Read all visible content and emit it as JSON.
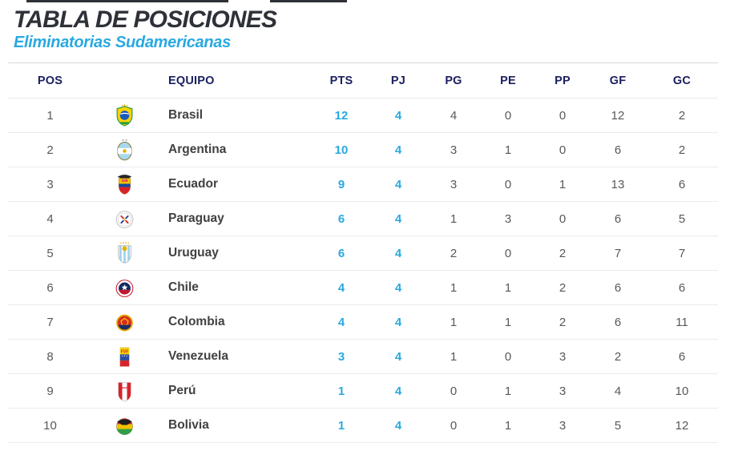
{
  "page": {
    "title": "TABLA DE POSICIONES",
    "subtitle": "Eliminatorias Sudamericanas"
  },
  "colors": {
    "accent_blue": "#29a9e0",
    "header_navy": "#1c2060",
    "title_dark": "#2e3138"
  },
  "chart_data": {
    "type": "table",
    "title": "TABLA DE POSICIONES",
    "subtitle": "Eliminatorias Sudamericanas",
    "columns": [
      {
        "key": "pos",
        "label": "POS"
      },
      {
        "key": "flag",
        "label": ""
      },
      {
        "key": "team",
        "label": "EQUIPO"
      },
      {
        "key": "pts",
        "label": "PTS"
      },
      {
        "key": "pj",
        "label": "PJ"
      },
      {
        "key": "pg",
        "label": "PG"
      },
      {
        "key": "pe",
        "label": "PE"
      },
      {
        "key": "pp",
        "label": "PP"
      },
      {
        "key": "gf",
        "label": "GF"
      },
      {
        "key": "gc",
        "label": "GC"
      }
    ],
    "rows": [
      {
        "pos": 1,
        "team": "Brasil",
        "flag": "brasil-crest",
        "pts": 12,
        "pj": 4,
        "pg": 4,
        "pe": 0,
        "pp": 0,
        "gf": 12,
        "gc": 2
      },
      {
        "pos": 2,
        "team": "Argentina",
        "flag": "argentina-crest",
        "pts": 10,
        "pj": 4,
        "pg": 3,
        "pe": 1,
        "pp": 0,
        "gf": 6,
        "gc": 2
      },
      {
        "pos": 3,
        "team": "Ecuador",
        "flag": "ecuador-crest",
        "pts": 9,
        "pj": 4,
        "pg": 3,
        "pe": 0,
        "pp": 1,
        "gf": 13,
        "gc": 6
      },
      {
        "pos": 4,
        "team": "Paraguay",
        "flag": "paraguay-crest",
        "pts": 6,
        "pj": 4,
        "pg": 1,
        "pe": 3,
        "pp": 0,
        "gf": 6,
        "gc": 5
      },
      {
        "pos": 5,
        "team": "Uruguay",
        "flag": "uruguay-crest",
        "pts": 6,
        "pj": 4,
        "pg": 2,
        "pe": 0,
        "pp": 2,
        "gf": 7,
        "gc": 7
      },
      {
        "pos": 6,
        "team": "Chile",
        "flag": "chile-crest",
        "pts": 4,
        "pj": 4,
        "pg": 1,
        "pe": 1,
        "pp": 2,
        "gf": 6,
        "gc": 6
      },
      {
        "pos": 7,
        "team": "Colombia",
        "flag": "colombia-crest",
        "pts": 4,
        "pj": 4,
        "pg": 1,
        "pe": 1,
        "pp": 2,
        "gf": 6,
        "gc": 11
      },
      {
        "pos": 8,
        "team": "Venezuela",
        "flag": "venezuela-crest",
        "pts": 3,
        "pj": 4,
        "pg": 1,
        "pe": 0,
        "pp": 3,
        "gf": 2,
        "gc": 6
      },
      {
        "pos": 9,
        "team": "Perú",
        "flag": "peru-crest",
        "pts": 1,
        "pj": 4,
        "pg": 0,
        "pe": 1,
        "pp": 3,
        "gf": 4,
        "gc": 10
      },
      {
        "pos": 10,
        "team": "Bolivia",
        "flag": "bolivia-crest",
        "pts": 1,
        "pj": 4,
        "pg": 0,
        "pe": 1,
        "pp": 3,
        "gf": 5,
        "gc": 12
      }
    ]
  }
}
